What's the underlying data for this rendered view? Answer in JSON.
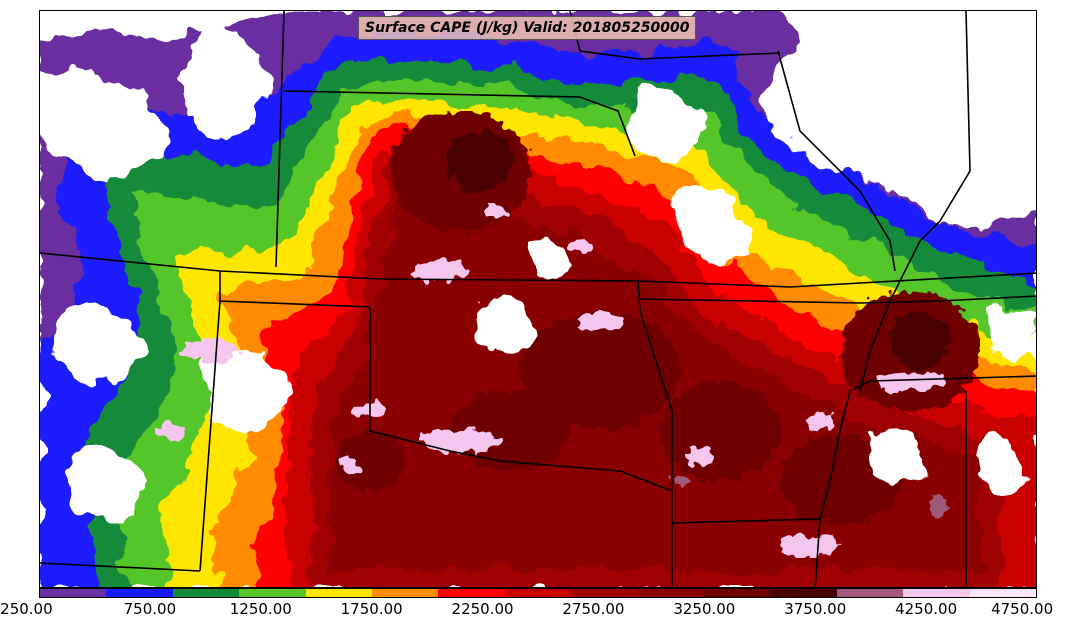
{
  "title": "Surface CAPE (J/kg) Valid: 201805250000",
  "colorbar": {
    "colors": [
      "#6a2fa0",
      "#1a1aff",
      "#138a3a",
      "#55c62a",
      "#ffe600",
      "#ff8c00",
      "#ff0000",
      "#c80000",
      "#a00000",
      "#8a0000",
      "#700000",
      "#4a0000",
      "#9e5a78",
      "#f6c6ee",
      "#fbe6f8"
    ],
    "labels": [
      "250.00",
      "750.00",
      "1250.00",
      "1750.00",
      "2250.00",
      "2750.00",
      "3250.00",
      "3750.00",
      "4250.00",
      "4750.00"
    ]
  },
  "map": {
    "field": "Surface CAPE",
    "units": "J/kg",
    "valid": "201805250000",
    "contour_min": 250,
    "contour_max": 4750,
    "contour_interval": 300
  }
}
